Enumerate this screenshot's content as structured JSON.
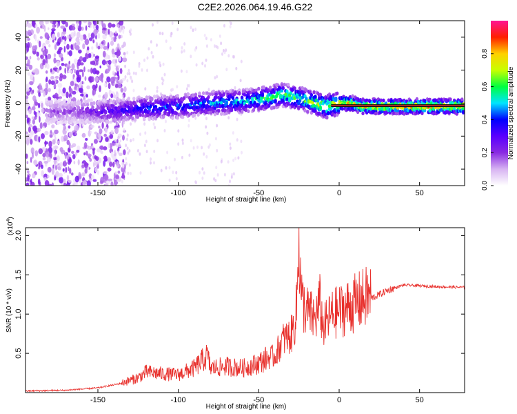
{
  "title": "C2E2.2026.064.19.46.G22",
  "colors": {
    "snr_line": "#e8302c",
    "axis": "#000000",
    "trend": "#111111",
    "trend_inner": "#e8302c"
  },
  "chart_data": [
    {
      "type": "heatmap",
      "xlabel": "Height of straight line (km)",
      "ylabel": "Frequency (Hz)",
      "xlim": [
        -195,
        78
      ],
      "ylim": [
        -50,
        50
      ],
      "xticks": [
        -150,
        -100,
        -50,
        0,
        50
      ],
      "xtick_labels": [
        "-150",
        "-100",
        "-50",
        "0",
        "50"
      ],
      "yticks": [
        -40,
        -20,
        0,
        20,
        40
      ],
      "ytick_labels": [
        "-40",
        "-20",
        "0",
        "20",
        "40"
      ],
      "colorbar": {
        "label": "Normalized spectral amplitude",
        "range": [
          0,
          1
        ],
        "ticks": [
          0.0,
          0.2,
          0.4,
          0.6,
          0.8
        ],
        "tick_labels": [
          "0.0",
          "0.2",
          "0.4",
          "0.6",
          "0.8"
        ],
        "stops": [
          "#ffffff",
          "#d7b3f2",
          "#8a2be2",
          "#5a00ff",
          "#0000ff",
          "#00e5ff",
          "#00ff40",
          "#c8ff00",
          "#ffd000",
          "#ff2000",
          "#ff1493"
        ]
      },
      "ridge": {
        "x": [
          -178,
          -160,
          -140,
          -120,
          -100,
          -80,
          -60,
          -45,
          -35,
          -25,
          -15,
          -8,
          0,
          8,
          15,
          30,
          50,
          78
        ],
        "y": [
          -5,
          -5,
          -5,
          -3,
          -2,
          0,
          1,
          3,
          5,
          3,
          0,
          -2,
          0,
          0,
          -2,
          -2,
          -2,
          -2
        ],
        "amplitude": [
          0.18,
          0.22,
          0.35,
          0.42,
          0.45,
          0.5,
          0.55,
          0.62,
          0.68,
          0.65,
          0.7,
          0.75,
          0.8,
          0.82,
          0.85,
          0.88,
          0.9,
          0.9
        ]
      },
      "trend_line": {
        "x": [
          -5,
          78
        ],
        "y": [
          -1.5,
          -1.5
        ]
      }
    },
    {
      "type": "line",
      "xlabel": "Height of straight line (km)",
      "ylabel": "SNR (10 * v/v)",
      "scale_label": "(x10",
      "scale_exponent": "4",
      "xlim": [
        -195,
        78
      ],
      "ylim": [
        0,
        21000
      ],
      "xticks": [
        -150,
        -100,
        -50,
        0,
        50
      ],
      "xtick_labels": [
        "-150",
        "-100",
        "-50",
        "0",
        "50"
      ],
      "yticks": [
        5000,
        10000,
        15000,
        20000
      ],
      "ytick_labels": [
        "0.5",
        "1.0",
        "1.5",
        "2.0"
      ],
      "series": [
        {
          "name": "SNR",
          "x": [
            -195,
            -170,
            -150,
            -135,
            -125,
            -120,
            -110,
            -100,
            -90,
            -82,
            -80,
            -70,
            -60,
            -50,
            -45,
            -40,
            -35,
            -30,
            -27,
            -25,
            -23,
            -20,
            -15,
            -12,
            -10,
            -5,
            0,
            5,
            10,
            15,
            20,
            30,
            40,
            60,
            78
          ],
          "y": [
            200,
            300,
            600,
            1200,
            1800,
            2500,
            2300,
            2200,
            3000,
            4500,
            3000,
            3200,
            3000,
            3600,
            4200,
            4500,
            6500,
            7000,
            9000,
            17000,
            11000,
            10000,
            9000,
            11000,
            8000,
            9500,
            10000,
            10500,
            11000,
            11500,
            12000,
            13000,
            13700,
            13500,
            13400
          ]
        }
      ]
    }
  ]
}
